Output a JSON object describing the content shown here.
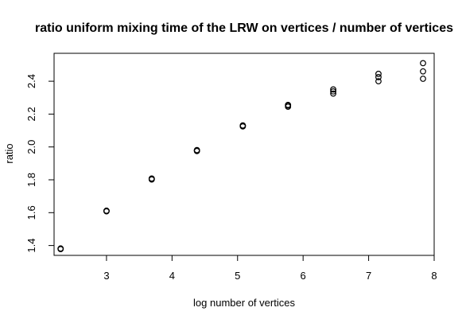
{
  "chart_data": {
    "type": "scatter",
    "title": "ratio uniform mixing time of the LRW on vertices  / number of vertices",
    "xlabel": "log number of vertices",
    "ylabel": "ratio",
    "xlim": [
      2.2,
      8.0
    ],
    "ylim": [
      1.34,
      2.57
    ],
    "x_ticks": [
      "3",
      "4",
      "5",
      "6",
      "7",
      "8"
    ],
    "y_ticks": [
      "1.4",
      "1.6",
      "1.8",
      "2.0",
      "2.2",
      "2.4"
    ],
    "grid": false,
    "legend": "none",
    "marker": "open-circle",
    "color": "#000000",
    "points": [
      {
        "x": 2.3,
        "y": 1.38
      },
      {
        "x": 2.3,
        "y": 1.378
      },
      {
        "x": 2.3,
        "y": 1.382
      },
      {
        "x": 3.0,
        "y": 1.61
      },
      {
        "x": 3.0,
        "y": 1.608
      },
      {
        "x": 3.0,
        "y": 1.612
      },
      {
        "x": 3.69,
        "y": 1.805
      },
      {
        "x": 3.69,
        "y": 1.802
      },
      {
        "x": 3.69,
        "y": 1.808
      },
      {
        "x": 4.38,
        "y": 1.978
      },
      {
        "x": 4.38,
        "y": 1.975
      },
      {
        "x": 4.38,
        "y": 1.981
      },
      {
        "x": 5.08,
        "y": 2.128
      },
      {
        "x": 5.08,
        "y": 2.125
      },
      {
        "x": 5.08,
        "y": 2.131
      },
      {
        "x": 5.77,
        "y": 2.252
      },
      {
        "x": 5.77,
        "y": 2.245
      },
      {
        "x": 5.77,
        "y": 2.256
      },
      {
        "x": 6.46,
        "y": 2.35
      },
      {
        "x": 6.46,
        "y": 2.338
      },
      {
        "x": 6.46,
        "y": 2.325
      },
      {
        "x": 7.15,
        "y": 2.445
      },
      {
        "x": 7.15,
        "y": 2.425
      },
      {
        "x": 7.15,
        "y": 2.4
      },
      {
        "x": 7.83,
        "y": 2.51
      },
      {
        "x": 7.83,
        "y": 2.46
      },
      {
        "x": 7.83,
        "y": 2.415
      }
    ]
  }
}
